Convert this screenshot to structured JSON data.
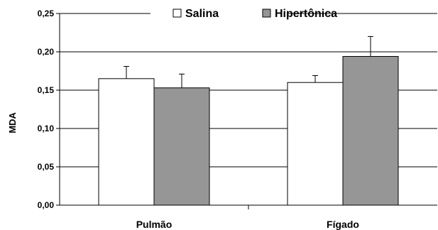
{
  "chart_data": {
    "type": "bar",
    "categories": [
      "Pulmão",
      "Fígado"
    ],
    "series": [
      {
        "name": "Salina",
        "values": [
          0.165,
          0.16
        ],
        "errors": [
          0.016,
          0.009
        ],
        "color": "#ffffff"
      },
      {
        "name": "Hipertônica",
        "values": [
          0.153,
          0.194
        ],
        "errors": [
          0.018,
          0.026
        ],
        "color": "#969696"
      }
    ],
    "title": "",
    "xlabel": "",
    "ylabel": "MDA",
    "ylim": [
      0,
      0.25
    ],
    "yticks": [
      "0,00",
      "0,05",
      "0,10",
      "0,15",
      "0,20",
      "0,25"
    ],
    "grid": "horizontal",
    "legend_position": "top"
  }
}
